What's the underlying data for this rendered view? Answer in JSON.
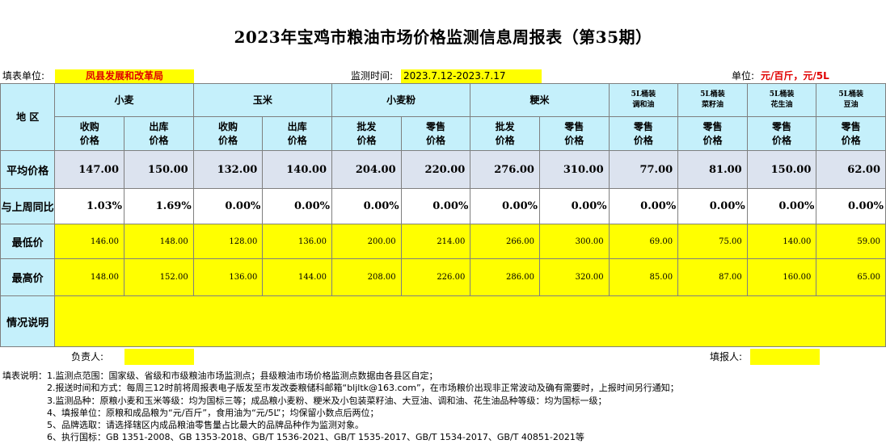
{
  "title": "2023年宝鸡市粮油市场价格监测信息周报表（第35期）",
  "info": {
    "unit_label": "填表单位:",
    "unit_value": "凤县发展和改革局",
    "time_label": "监测时间:",
    "time_value": "2023.7.12-2023.7.17",
    "price_unit_label": "单位:",
    "price_unit_value": "元/百斤，元/5L"
  },
  "table": {
    "region_header": "地  区",
    "groups": [
      "小麦",
      "玉米",
      "小麦粉",
      "粳米"
    ],
    "oil_headers": [
      [
        "5L桶装",
        "调和油"
      ],
      [
        "5L桶装",
        "菜籽油"
      ],
      [
        "5L桶装",
        "花生油"
      ],
      [
        "5L桶装",
        "豆油"
      ]
    ],
    "sub_headers": [
      [
        "收购",
        "价格"
      ],
      [
        "出库",
        "价格"
      ],
      [
        "收购",
        "价格"
      ],
      [
        "出库",
        "价格"
      ],
      [
        "批发",
        "价格"
      ],
      [
        "零售",
        "价格"
      ],
      [
        "批发",
        "价格"
      ],
      [
        "零售",
        "价格"
      ],
      [
        "零售",
        "价格"
      ],
      [
        "零售",
        "价格"
      ],
      [
        "零售",
        "价格"
      ],
      [
        "零售",
        "价格"
      ]
    ],
    "rows": {
      "avg": {
        "label": "平均价格",
        "values": [
          "147.00",
          "150.00",
          "132.00",
          "140.00",
          "204.00",
          "220.00",
          "276.00",
          "310.00",
          "77.00",
          "81.00",
          "150.00",
          "62.00"
        ]
      },
      "change": {
        "label": "与上周同比",
        "values": [
          "1.03%",
          "1.69%",
          "0.00%",
          "0.00%",
          "0.00%",
          "0.00%",
          "0.00%",
          "0.00%",
          "0.00%",
          "0.00%",
          "0.00%",
          "0.00%"
        ]
      },
      "min": {
        "label": "最低价",
        "values": [
          "146.00",
          "148.00",
          "128.00",
          "136.00",
          "200.00",
          "214.00",
          "266.00",
          "300.00",
          "69.00",
          "75.00",
          "140.00",
          "59.00"
        ]
      },
      "max": {
        "label": "最高价",
        "values": [
          "148.00",
          "152.00",
          "136.00",
          "144.00",
          "208.00",
          "226.00",
          "286.00",
          "320.00",
          "85.00",
          "87.00",
          "160.00",
          "65.00"
        ]
      },
      "notes": {
        "label": "情况说明",
        "value": ""
      }
    }
  },
  "sign": {
    "responsible_label": "负责人:",
    "reporter_label": "填报人:"
  },
  "notes": [
    "填表说明：1.监测点范围：国家级、省级和市级粮油市场监测点；县级粮油市场价格监测点数据由各县区自定；",
    "　　　　　2.报送时间和方式：每周三12时前将周报表电子版发至市发改委粮储科邮箱“bljltk@163.com”，在市场粮价出现非正常波动及确有需要时，上报时间另行通知；",
    "　　　　　3.监测品种：原粮小麦和玉米等级：均为国标三等；成品粮小麦粉、粳米及小包装菜籽油、大豆油、调和油、花生油品种等级：均为国标一级；",
    "　　　　　4、填报单位：原粮和成品粮为“元/百斤”，食用油为“元/5L”；均保留小数点后两位；",
    "　　　　　5、品牌选取：请选择辖区内成品粮油零售量占比最大的品牌品种作为监测对象。",
    "　　　　　6、执行国标：GB 1351-2008、GB 1353-2018、GB/T 1536-2021、GB/T 1535-2017、GB/T 1534-2017、GB/T 40851-2021等"
  ]
}
